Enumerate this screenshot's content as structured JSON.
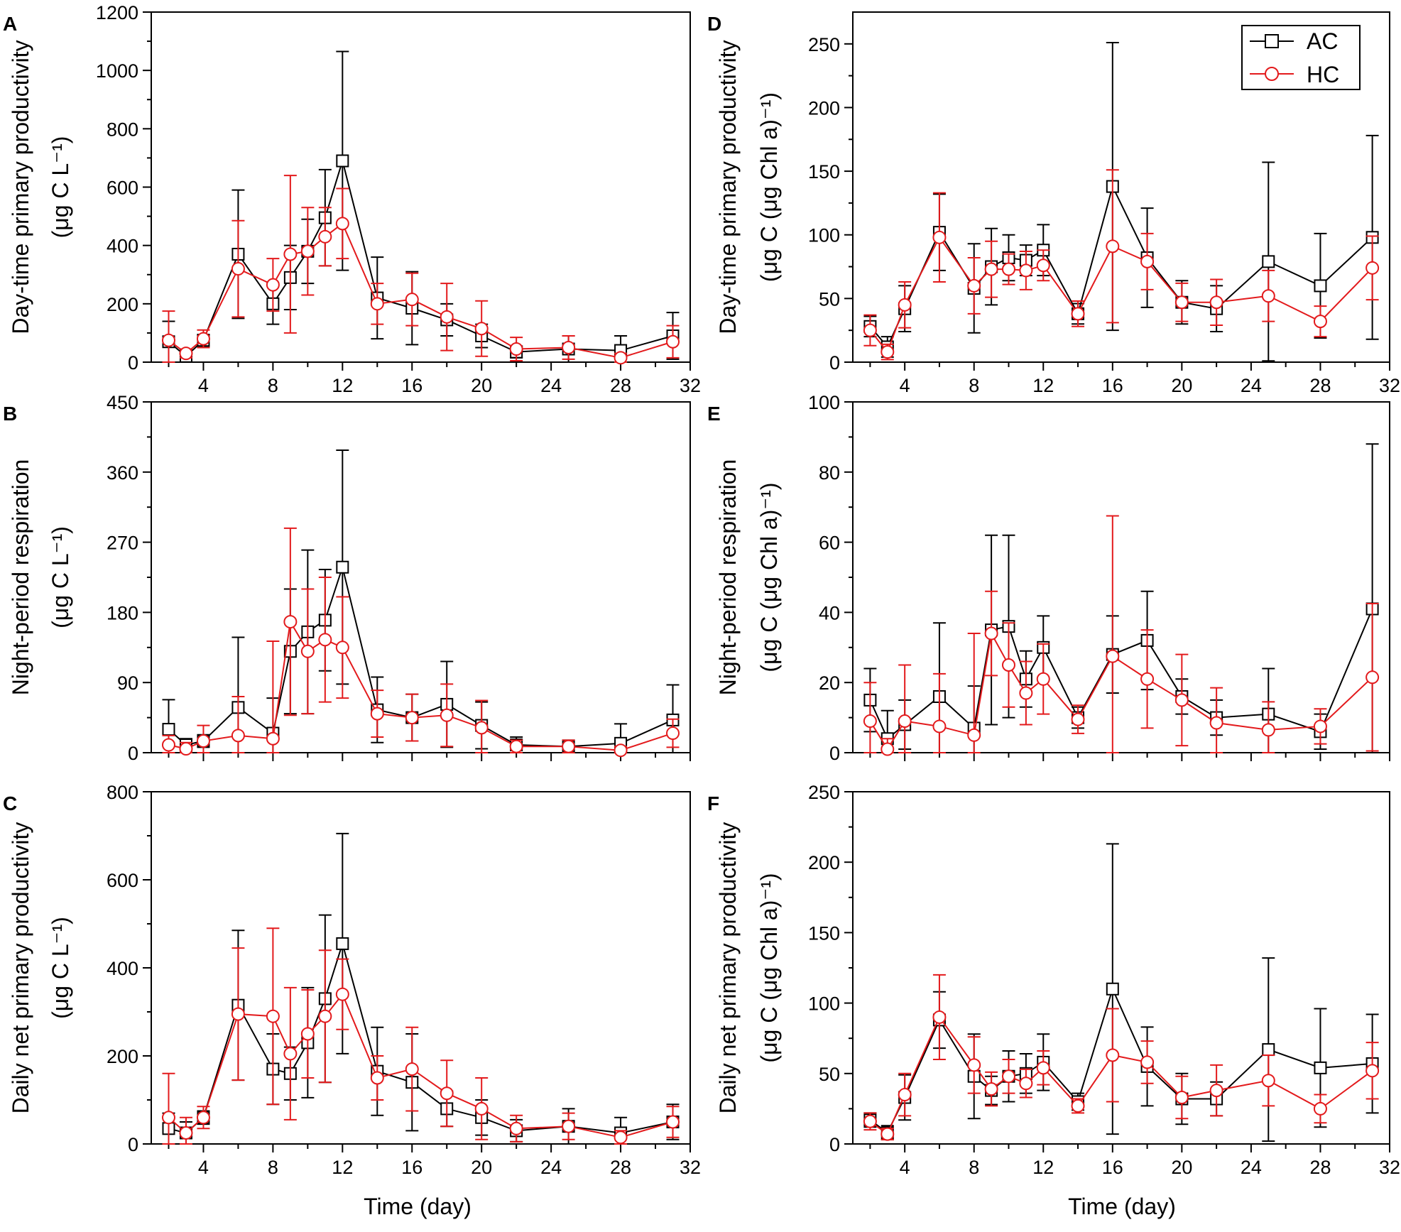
{
  "figure": {
    "xlabel": "Time (day)",
    "colors": {
      "AC": "#000000",
      "HC": "#e31a1c"
    }
  },
  "legend": {
    "items": [
      {
        "name": "AC",
        "color": "#000000",
        "marker": "square"
      },
      {
        "name": "HC",
        "color": "#e31a1c",
        "marker": "circle"
      }
    ]
  },
  "chart_data": [
    {
      "panel": "A",
      "type": "line",
      "ylabel_line1": "Day-time primary productivity",
      "ylabel_line2": "(μg C L⁻¹)",
      "xlim": [
        1,
        32
      ],
      "xticks": [
        4,
        8,
        12,
        16,
        20,
        24,
        28,
        32
      ],
      "ylim": [
        0,
        1200
      ],
      "yticks": [
        0,
        200,
        400,
        600,
        800,
        1000,
        1200
      ],
      "x": [
        2,
        3,
        4,
        6,
        8,
        9,
        10,
        11,
        12,
        14,
        16,
        18,
        20,
        22,
        25,
        28,
        31
      ],
      "series": [
        {
          "name": "AC",
          "values": [
            70,
            20,
            75,
            370,
            200,
            290,
            380,
            495,
            690,
            220,
            185,
            145,
            90,
            35,
            45,
            40,
            90
          ],
          "errors": [
            70,
            20,
            20,
            220,
            70,
            110,
            110,
            165,
            375,
            140,
            125,
            55,
            40,
            20,
            45,
            50,
            80
          ]
        },
        {
          "name": "HC",
          "values": [
            75,
            30,
            80,
            320,
            265,
            370,
            380,
            430,
            475,
            200,
            215,
            155,
            115,
            45,
            50,
            15,
            70
          ],
          "errors": [
            100,
            15,
            30,
            165,
            90,
            270,
            150,
            100,
            120,
            70,
            90,
            115,
            95,
            40,
            40,
            15,
            55
          ]
        }
      ]
    },
    {
      "panel": "B",
      "type": "line",
      "ylabel_line1": "Night-period respiration",
      "ylabel_line2": "(μg C L⁻¹)",
      "xlim": [
        1,
        32
      ],
      "xticks": [
        4,
        8,
        12,
        16,
        20,
        24,
        28,
        32
      ],
      "ylim": [
        0,
        450
      ],
      "yticks": [
        0,
        90,
        180,
        270,
        360,
        450
      ],
      "x": [
        2,
        3,
        4,
        6,
        8,
        9,
        10,
        11,
        12,
        14,
        16,
        18,
        20,
        22,
        25,
        28,
        31
      ],
      "series": [
        {
          "name": "AC",
          "values": [
            30,
            10,
            15,
            58,
            25,
            130,
            155,
            170,
            238,
            55,
            45,
            62,
            35,
            10,
            8,
            12,
            42
          ],
          "errors": [
            38,
            8,
            8,
            90,
            45,
            80,
            105,
            65,
            150,
            42,
            30,
            55,
            30,
            10,
            8,
            25,
            45
          ]
        },
        {
          "name": "HC",
          "values": [
            10,
            5,
            15,
            22,
            18,
            168,
            130,
            145,
            135,
            50,
            45,
            48,
            32,
            8,
            8,
            3,
            25
          ],
          "errors": [
            12,
            8,
            20,
            50,
            125,
            120,
            80,
            80,
            65,
            30,
            30,
            40,
            35,
            8,
            8,
            5,
            18
          ]
        }
      ]
    },
    {
      "panel": "C",
      "type": "line",
      "ylabel_line1": "Daily net primary productivity",
      "ylabel_line2": "(μg C L⁻¹)",
      "xlim": [
        1,
        32
      ],
      "xticks": [
        4,
        8,
        12,
        16,
        20,
        24,
        28,
        32
      ],
      "ylim": [
        0,
        800
      ],
      "yticks": [
        0,
        200,
        400,
        600,
        800
      ],
      "x": [
        2,
        3,
        4,
        6,
        8,
        9,
        10,
        11,
        12,
        14,
        16,
        18,
        20,
        22,
        25,
        28,
        31
      ],
      "series": [
        {
          "name": "AC",
          "values": [
            35,
            25,
            60,
            315,
            170,
            160,
            230,
            330,
            455,
            165,
            140,
            80,
            60,
            30,
            40,
            25,
            50
          ],
          "errors": [
            35,
            25,
            15,
            170,
            80,
            60,
            125,
            190,
            250,
            100,
            110,
            40,
            40,
            25,
            40,
            35,
            40
          ]
        },
        {
          "name": "HC",
          "values": [
            60,
            25,
            60,
            295,
            290,
            205,
            250,
            290,
            340,
            150,
            170,
            115,
            80,
            35,
            40,
            15,
            50
          ],
          "errors": [
            100,
            35,
            25,
            150,
            200,
            150,
            100,
            150,
            80,
            50,
            95,
            75,
            70,
            30,
            30,
            15,
            35
          ]
        }
      ]
    },
    {
      "panel": "D",
      "type": "line",
      "ylabel_line1": "Day-time primary productivity",
      "ylabel_line2": "(μg C (μg Chl a)⁻¹)",
      "xlim": [
        1,
        32
      ],
      "xticks": [
        4,
        8,
        12,
        16,
        20,
        24,
        28,
        32
      ],
      "ylim": [
        0,
        275
      ],
      "yticks": [
        0,
        50,
        100,
        150,
        200,
        250
      ],
      "x": [
        2,
        3,
        4,
        6,
        8,
        9,
        10,
        11,
        12,
        14,
        16,
        18,
        20,
        22,
        25,
        28,
        31
      ],
      "series": [
        {
          "name": "AC",
          "values": [
            28,
            12,
            42,
            102,
            58,
            75,
            82,
            80,
            88,
            38,
            138,
            82,
            47,
            42,
            79,
            60,
            98
          ],
          "errors": [
            8,
            8,
            18,
            30,
            35,
            30,
            18,
            12,
            20,
            8,
            113,
            39,
            17,
            18,
            78,
            41,
            80
          ]
        },
        {
          "name": "HC",
          "values": [
            25,
            8,
            45,
            98,
            60,
            73,
            73,
            72,
            76,
            38,
            91,
            79,
            47,
            47,
            52,
            32,
            74
          ],
          "errors": [
            12,
            6,
            18,
            35,
            22,
            22,
            12,
            15,
            12,
            10,
            60,
            22,
            15,
            18,
            20,
            12,
            25
          ]
        }
      ]
    },
    {
      "panel": "E",
      "type": "line",
      "ylabel_line1": "Night-period respiration",
      "ylabel_line2": "(μg C (μg Chl a)⁻¹)",
      "xlim": [
        1,
        32
      ],
      "xticks": [
        4,
        8,
        12,
        16,
        20,
        24,
        28,
        32
      ],
      "ylim": [
        0,
        100
      ],
      "yticks": [
        0,
        20,
        40,
        60,
        80,
        100
      ],
      "x": [
        2,
        3,
        4,
        6,
        8,
        9,
        10,
        11,
        12,
        14,
        16,
        18,
        20,
        22,
        25,
        28,
        31
      ],
      "series": [
        {
          "name": "AC",
          "values": [
            15,
            4,
            8,
            16,
            7,
            35,
            36,
            21,
            30,
            10,
            28,
            32,
            16,
            10,
            11,
            6,
            41
          ],
          "errors": [
            9,
            8,
            7,
            21,
            12,
            27,
            26,
            8,
            9,
            3,
            11,
            14,
            5,
            5,
            13,
            5,
            47
          ]
        },
        {
          "name": "HC",
          "values": [
            9,
            1,
            9,
            7.5,
            5,
            34,
            25,
            17,
            21,
            9.5,
            27.5,
            21,
            15,
            8.5,
            6.5,
            7.5,
            21.5
          ],
          "errors": [
            11,
            3,
            16,
            15,
            29,
            12,
            12,
            9,
            10,
            4,
            40,
            14,
            13,
            10,
            8,
            5,
            21
          ]
        }
      ]
    },
    {
      "panel": "F",
      "type": "line",
      "ylabel_line1": "Daily net primary productivity",
      "ylabel_line2": "(μg C (μg Chl a)⁻¹)",
      "xlim": [
        1,
        32
      ],
      "xticks": [
        4,
        8,
        12,
        16,
        20,
        24,
        28,
        32
      ],
      "ylim": [
        0,
        250
      ],
      "yticks": [
        0,
        50,
        100,
        150,
        200,
        250
      ],
      "x": [
        2,
        3,
        4,
        6,
        8,
        9,
        10,
        11,
        12,
        14,
        16,
        18,
        20,
        22,
        25,
        28,
        31
      ],
      "series": [
        {
          "name": "AC",
          "values": [
            17,
            8,
            33,
            88,
            48,
            38,
            48,
            50,
            58,
            30,
            110,
            55,
            32,
            32,
            67,
            54,
            57
          ],
          "errors": [
            5,
            5,
            16,
            20,
            30,
            10,
            18,
            14,
            20,
            6,
            103,
            28,
            18,
            12,
            65,
            42,
            35
          ]
        },
        {
          "name": "HC",
          "values": [
            16,
            7,
            35,
            90,
            56,
            39,
            48,
            43,
            54,
            27,
            63,
            58,
            33,
            38,
            45,
            25,
            52
          ],
          "errors": [
            6,
            4,
            15,
            30,
            20,
            12,
            12,
            10,
            12,
            5,
            33,
            15,
            15,
            18,
            18,
            10,
            20
          ]
        }
      ]
    }
  ]
}
